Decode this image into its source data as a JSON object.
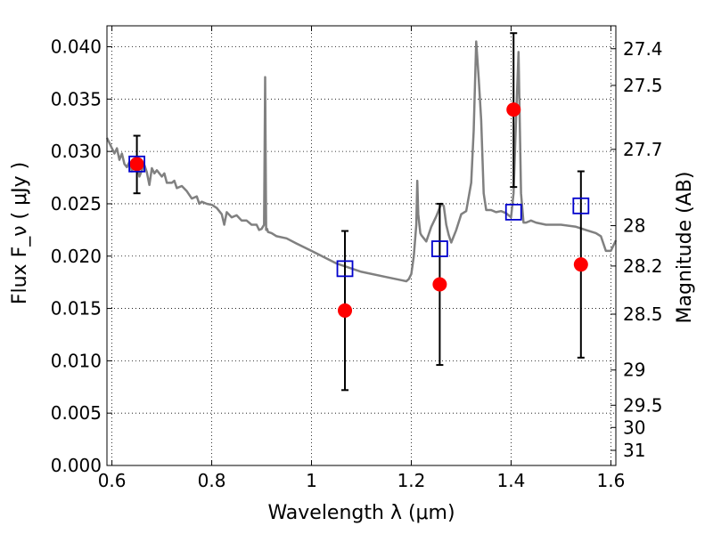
{
  "chart_data": {
    "type": "scatter",
    "xlabel": "Wavelength  λ (μm)",
    "ylabel": "Flux  F_ν  ( μJy )",
    "y2label": "Magnitude (AB)",
    "xlim": [
      0.59,
      1.61
    ],
    "ylim": [
      0.0,
      0.042
    ],
    "grid": true,
    "xticks": [
      {
        "value": 0.6,
        "label": "0.6"
      },
      {
        "value": 0.8,
        "label": "0.8"
      },
      {
        "value": 1.0,
        "label": "1"
      },
      {
        "value": 1.2,
        "label": "1.2"
      },
      {
        "value": 1.4,
        "label": "1.4"
      },
      {
        "value": 1.6,
        "label": "1.6"
      }
    ],
    "yticks": [
      {
        "value": 0.0,
        "label": "0.000"
      },
      {
        "value": 0.005,
        "label": "0.005"
      },
      {
        "value": 0.01,
        "label": "0.010"
      },
      {
        "value": 0.015,
        "label": "0.015"
      },
      {
        "value": 0.02,
        "label": "0.020"
      },
      {
        "value": 0.025,
        "label": "0.025"
      },
      {
        "value": 0.03,
        "label": "0.030"
      },
      {
        "value": 0.035,
        "label": "0.035"
      },
      {
        "value": 0.04,
        "label": "0.040"
      }
    ],
    "magnitude_ticks": [
      {
        "mag": 27.4,
        "label": "27.4"
      },
      {
        "mag": 27.5,
        "label": "27.5"
      },
      {
        "mag": 27.7,
        "label": "27.7"
      },
      {
        "mag": 28.0,
        "label": "28"
      },
      {
        "mag": 28.2,
        "label": "28.2"
      },
      {
        "mag": 28.5,
        "label": "28.5"
      },
      {
        "mag": 29.0,
        "label": "29"
      },
      {
        "mag": 29.5,
        "label": "29.5"
      },
      {
        "mag": 30.0,
        "label": "30"
      },
      {
        "mag": 31.0,
        "label": "31"
      }
    ],
    "series": [
      {
        "kind": "line",
        "color": "#808080",
        "x": [
          0.59,
          0.595,
          0.6,
          0.605,
          0.61,
          0.615,
          0.62,
          0.625,
          0.63,
          0.635,
          0.64,
          0.645,
          0.65,
          0.655,
          0.66,
          0.665,
          0.67,
          0.675,
          0.68,
          0.685,
          0.69,
          0.7,
          0.705,
          0.71,
          0.72,
          0.725,
          0.73,
          0.74,
          0.75,
          0.76,
          0.77,
          0.775,
          0.78,
          0.79,
          0.8,
          0.81,
          0.82,
          0.825,
          0.83,
          0.84,
          0.85,
          0.86,
          0.87,
          0.88,
          0.89,
          0.895,
          0.9,
          0.905,
          0.907,
          0.909,
          0.911,
          0.913,
          0.92,
          0.93,
          0.95,
          0.97,
          1.0,
          1.05,
          1.1,
          1.15,
          1.18,
          1.19,
          1.195,
          1.2,
          1.205,
          1.21,
          1.212,
          1.214,
          1.218,
          1.22,
          1.23,
          1.24,
          1.25,
          1.26,
          1.265,
          1.27,
          1.275,
          1.28,
          1.29,
          1.3,
          1.31,
          1.32,
          1.325,
          1.33,
          1.335,
          1.34,
          1.345,
          1.35,
          1.36,
          1.37,
          1.38,
          1.39,
          1.4,
          1.405,
          1.41,
          1.415,
          1.42,
          1.425,
          1.43,
          1.44,
          1.45,
          1.47,
          1.5,
          1.53,
          1.55,
          1.57,
          1.58,
          1.59,
          1.6,
          1.61
        ],
        "y": [
          0.0313,
          0.0308,
          0.0303,
          0.0298,
          0.0303,
          0.0292,
          0.0298,
          0.0288,
          0.0285,
          0.029,
          0.0281,
          0.0289,
          0.0292,
          0.0276,
          0.0282,
          0.0287,
          0.028,
          0.0268,
          0.0284,
          0.0279,
          0.0282,
          0.0276,
          0.0279,
          0.027,
          0.027,
          0.0272,
          0.0265,
          0.0267,
          0.0262,
          0.0255,
          0.0257,
          0.025,
          0.0252,
          0.025,
          0.0249,
          0.0246,
          0.024,
          0.023,
          0.0242,
          0.0237,
          0.0239,
          0.0234,
          0.0234,
          0.023,
          0.023,
          0.0225,
          0.0226,
          0.023,
          0.0371,
          0.0225,
          0.0226,
          0.0223,
          0.0222,
          0.0219,
          0.0217,
          0.0212,
          0.0205,
          0.0193,
          0.0185,
          0.018,
          0.0177,
          0.0176,
          0.0178,
          0.0183,
          0.02,
          0.023,
          0.0272,
          0.024,
          0.0222,
          0.022,
          0.0214,
          0.0228,
          0.0238,
          0.025,
          0.0248,
          0.023,
          0.022,
          0.0213,
          0.0225,
          0.024,
          0.0243,
          0.027,
          0.032,
          0.0405,
          0.037,
          0.033,
          0.026,
          0.0244,
          0.0244,
          0.0242,
          0.0243,
          0.0241,
          0.0237,
          0.026,
          0.033,
          0.0395,
          0.026,
          0.0232,
          0.0232,
          0.0234,
          0.0232,
          0.023,
          0.023,
          0.0228,
          0.0225,
          0.0222,
          0.0219,
          0.0205,
          0.0205,
          0.0215
        ]
      },
      {
        "kind": "scatter-errorbar",
        "marker": "circle",
        "color": "#ff0000",
        "x": [
          0.65,
          1.067,
          1.257,
          1.405,
          1.54
        ],
        "y": [
          0.0288,
          0.0148,
          0.0173,
          0.034,
          0.0192
        ],
        "yerr_low": [
          0.026,
          0.0072,
          0.0096,
          0.0266,
          0.0103
        ],
        "yerr_high": [
          0.0315,
          0.0224,
          0.025,
          0.0413,
          0.0281
        ]
      },
      {
        "kind": "scatter",
        "marker": "open-square",
        "color": "#0000cc",
        "x": [
          0.65,
          1.067,
          1.257,
          1.405,
          1.54
        ],
        "y": [
          0.0288,
          0.0188,
          0.0207,
          0.0242,
          0.0248
        ]
      }
    ]
  }
}
